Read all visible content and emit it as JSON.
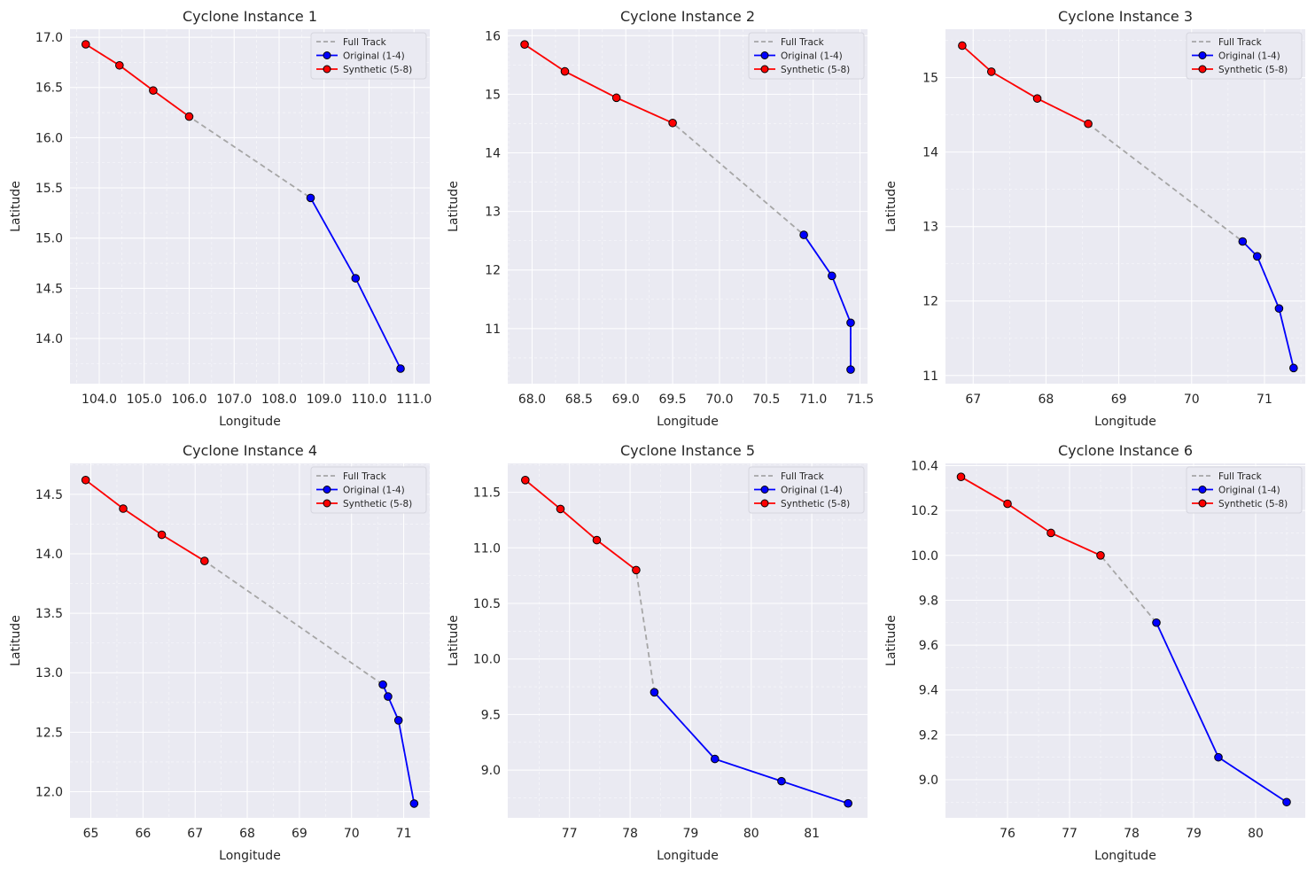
{
  "figure": {
    "background": "#ffffff",
    "axes_background": "#eaeaf2",
    "grid_color": "#ffffff"
  },
  "legend": {
    "full_track": "Full Track",
    "original": "Original (1-4)",
    "synthetic": "Synthetic (5-8)"
  },
  "colors": {
    "full_track": "#a6a6a6",
    "original": "#0000ff",
    "synthetic": "#ff0000",
    "marker_edge": "#000000"
  },
  "chart_data": [
    {
      "type": "line",
      "title": "Cyclone Instance 1",
      "xlabel": "Longitude",
      "ylabel": "Latitude",
      "xlim": [
        103.35,
        111.35
      ],
      "ylim": [
        13.55,
        17.08
      ],
      "xticks": [
        104,
        105,
        106,
        107,
        108,
        109,
        110,
        111
      ],
      "yticks": [
        14.0,
        14.5,
        15.0,
        15.5,
        16.0,
        16.5,
        17.0
      ],
      "tick_decimals": 1,
      "legend_position": "top-right",
      "series": [
        {
          "name": "Original (1-4)",
          "points": [
            [
              110.7,
              13.7
            ],
            [
              109.7,
              14.6
            ],
            [
              108.7,
              15.4
            ]
          ]
        },
        {
          "name": "Synthetic (5-8)",
          "points": [
            [
              106.0,
              16.21
            ],
            [
              105.2,
              16.47
            ],
            [
              104.45,
              16.72
            ],
            [
              103.7,
              16.93
            ]
          ]
        }
      ]
    },
    {
      "type": "line",
      "title": "Cyclone Instance 2",
      "xlabel": "Longitude",
      "ylabel": "Latitude",
      "xlim": [
        67.74,
        71.58
      ],
      "ylim": [
        10.06,
        16.11
      ],
      "xticks": [
        68.0,
        68.5,
        69.0,
        69.5,
        70.0,
        70.5,
        71.0,
        71.5
      ],
      "yticks": [
        11,
        12,
        13,
        14,
        15,
        16
      ],
      "tick_decimals": 0,
      "xtick_decimals": 1,
      "legend_position": "top-right",
      "series": [
        {
          "name": "Original (1-4)",
          "points": [
            [
              71.4,
              10.3
            ],
            [
              71.4,
              11.1
            ],
            [
              71.2,
              11.9
            ],
            [
              70.9,
              12.6
            ]
          ]
        },
        {
          "name": "Synthetic (5-8)",
          "points": [
            [
              69.5,
              14.51
            ],
            [
              68.9,
              14.94
            ],
            [
              68.35,
              15.39
            ],
            [
              67.92,
              15.85
            ]
          ]
        }
      ]
    },
    {
      "type": "line",
      "title": "Cyclone Instance 3",
      "xlabel": "Longitude",
      "ylabel": "Latitude",
      "xlim": [
        66.62,
        71.56
      ],
      "ylim": [
        10.89,
        15.65
      ],
      "xticks": [
        67,
        68,
        69,
        70,
        71
      ],
      "yticks": [
        11,
        12,
        13,
        14,
        15
      ],
      "tick_decimals": 0,
      "legend_position": "top-right",
      "series": [
        {
          "name": "Original (1-4)",
          "points": [
            [
              71.4,
              11.1
            ],
            [
              71.2,
              11.9
            ],
            [
              70.9,
              12.6
            ],
            [
              70.7,
              12.8
            ]
          ]
        },
        {
          "name": "Synthetic (5-8)",
          "points": [
            [
              68.58,
              14.38
            ],
            [
              67.88,
              14.72
            ],
            [
              67.25,
              15.08
            ],
            [
              66.85,
              15.43
            ]
          ]
        }
      ]
    },
    {
      "type": "line",
      "title": "Cyclone Instance 4",
      "xlabel": "Longitude",
      "ylabel": "Latitude",
      "xlim": [
        64.6,
        71.5
      ],
      "ylim": [
        11.78,
        14.76
      ],
      "xticks": [
        65,
        66,
        67,
        68,
        69,
        70,
        71
      ],
      "yticks": [
        12.0,
        12.5,
        13.0,
        13.5,
        14.0,
        14.5
      ],
      "tick_decimals": 1,
      "xtick_decimals": 0,
      "legend_position": "top-right",
      "series": [
        {
          "name": "Original (1-4)",
          "points": [
            [
              71.2,
              11.9
            ],
            [
              70.9,
              12.6
            ],
            [
              70.7,
              12.8
            ],
            [
              70.6,
              12.9
            ]
          ]
        },
        {
          "name": "Synthetic (5-8)",
          "points": [
            [
              67.18,
              13.94
            ],
            [
              66.36,
              14.16
            ],
            [
              65.62,
              14.38
            ],
            [
              64.9,
              14.62
            ]
          ]
        }
      ]
    },
    {
      "type": "line",
      "title": "Cyclone Instance 5",
      "xlabel": "Longitude",
      "ylabel": "Latitude",
      "xlim": [
        75.98,
        81.92
      ],
      "ylim": [
        8.57,
        11.76
      ],
      "xticks": [
        77,
        78,
        79,
        80,
        81
      ],
      "yticks": [
        9.0,
        9.5,
        10.0,
        10.5,
        11.0,
        11.5
      ],
      "tick_decimals": 1,
      "xtick_decimals": 0,
      "legend_position": "top-right",
      "series": [
        {
          "name": "Original (1-4)",
          "points": [
            [
              81.6,
              8.7
            ],
            [
              80.5,
              8.9
            ],
            [
              79.4,
              9.1
            ],
            [
              78.4,
              9.7
            ]
          ]
        },
        {
          "name": "Synthetic (5-8)",
          "points": [
            [
              78.1,
              10.8
            ],
            [
              77.45,
              11.07
            ],
            [
              76.85,
              11.35
            ],
            [
              76.27,
              11.61
            ]
          ]
        }
      ]
    },
    {
      "type": "line",
      "title": "Cyclone Instance 6",
      "xlabel": "Longitude",
      "ylabel": "Latitude",
      "xlim": [
        75.0,
        80.8
      ],
      "ylim": [
        8.83,
        10.41
      ],
      "xticks": [
        76,
        77,
        78,
        79,
        80
      ],
      "yticks": [
        9.0,
        9.2,
        9.4,
        9.6,
        9.8,
        10.0,
        10.2,
        10.4
      ],
      "tick_decimals": 1,
      "xtick_decimals": 0,
      "legend_position": "top-right",
      "series": [
        {
          "name": "Original (1-4)",
          "points": [
            [
              80.5,
              8.9
            ],
            [
              79.4,
              9.1
            ],
            [
              78.4,
              9.7
            ]
          ]
        },
        {
          "name": "Synthetic (5-8)",
          "points": [
            [
              77.5,
              10.0
            ],
            [
              76.7,
              10.1
            ],
            [
              76.0,
              10.23
            ],
            [
              75.25,
              10.35
            ]
          ]
        }
      ]
    }
  ]
}
